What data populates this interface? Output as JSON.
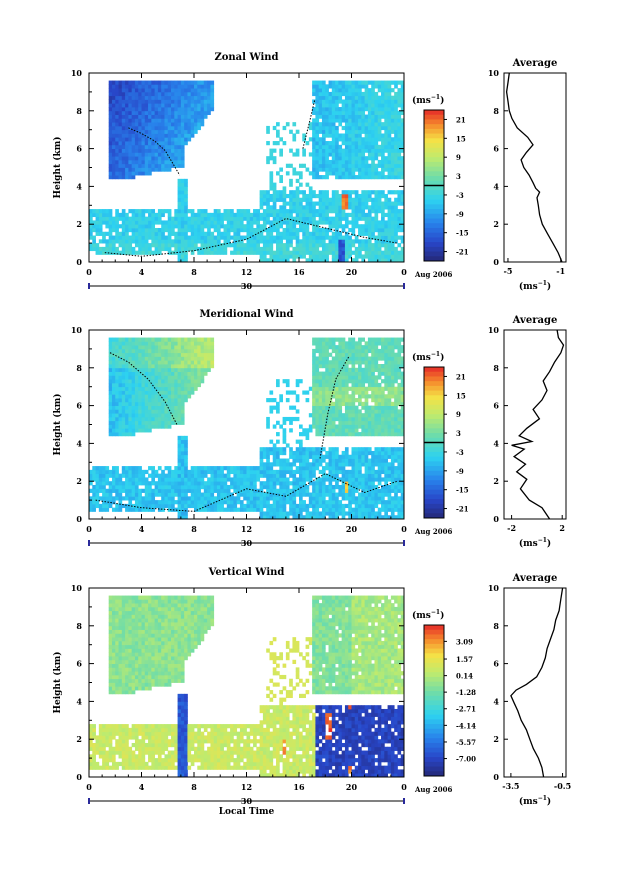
{
  "chart_data": [
    {
      "type": "heatmap",
      "title": "Zonal Wind",
      "ylabel": "Height (km)",
      "xlim": [
        0,
        24
      ],
      "ylim": [
        0,
        10
      ],
      "xticks": [
        "0",
        "4",
        "8",
        "12",
        "16",
        "20",
        "0"
      ],
      "yticks": [
        "0",
        "2",
        "4",
        "6",
        "8",
        "10"
      ],
      "date_day": "30",
      "date_label": "Aug 2006",
      "colorbar": {
        "unit": "(ms",
        "unit_exp": "−1",
        "range": [
          -24,
          24
        ],
        "ticks": [
          "21",
          "15",
          "9",
          "3",
          "-3",
          "-9",
          "-15",
          "-21"
        ]
      },
      "average": {
        "title": "Average",
        "xticks": [
          "-5",
          "-1"
        ],
        "xlim": [
          -5.3,
          -0.6
        ],
        "xlabel": "(ms",
        "xlabel_exp": "−1",
        "profile_x": [
          -0.9,
          -1.2,
          -1.6,
          -2.0,
          -2.4,
          -2.6,
          -2.7,
          -2.8,
          -2.6,
          -2.9,
          -3.1,
          -3.4,
          -3.8,
          -4.0,
          -3.6,
          -3.1,
          -3.5,
          -4.3,
          -4.7,
          -4.9,
          -5.0,
          -5.1,
          -5.0,
          -4.9
        ],
        "profile_h": [
          0.0,
          0.5,
          1.0,
          1.5,
          2.0,
          2.5,
          3.0,
          3.4,
          3.7,
          3.9,
          4.2,
          4.6,
          5.0,
          5.4,
          5.8,
          6.2,
          6.6,
          7.1,
          7.6,
          8.0,
          8.5,
          9.0,
          9.5,
          10.0
        ]
      }
    },
    {
      "type": "heatmap",
      "title": "Meridional Wind",
      "ylabel": "Height (km)",
      "xlim": [
        0,
        24
      ],
      "ylim": [
        0,
        10
      ],
      "xticks": [
        "0",
        "4",
        "8",
        "12",
        "16",
        "20",
        "0"
      ],
      "yticks": [
        "0",
        "2",
        "4",
        "6",
        "8",
        "10"
      ],
      "date_day": "30",
      "date_label": "Aug 2006",
      "colorbar": {
        "unit": "(ms",
        "unit_exp": "−1",
        "range": [
          -24,
          24
        ],
        "ticks": [
          "21",
          "15",
          "9",
          "3",
          "-3",
          "-9",
          "-15",
          "-21"
        ]
      },
      "average": {
        "title": "Average",
        "xticks": [
          "-2",
          "2"
        ],
        "xlim": [
          -2.6,
          2.3
        ],
        "xlabel": "(ms",
        "xlabel_exp": "−1",
        "profile_x": [
          1.0,
          0.4,
          -0.6,
          -1.3,
          -0.8,
          -1.6,
          -0.9,
          -1.8,
          -1.0,
          -2.0,
          -0.4,
          -1.4,
          -0.8,
          0.2,
          -0.3,
          0.4,
          0.8,
          0.5,
          1.0,
          1.4,
          1.9,
          2.1,
          1.7,
          1.6
        ],
        "profile_h": [
          0.0,
          0.6,
          1.0,
          1.6,
          2.1,
          2.5,
          2.9,
          3.3,
          3.7,
          3.9,
          4.1,
          4.4,
          4.8,
          5.3,
          5.8,
          6.3,
          6.8,
          7.3,
          7.8,
          8.3,
          8.8,
          9.2,
          9.6,
          10.0
        ]
      }
    },
    {
      "type": "heatmap",
      "title": "Vertical Wind",
      "ylabel": "Height (km)",
      "xlabel": "Local Time",
      "xlim": [
        0,
        24
      ],
      "ylim": [
        0,
        10
      ],
      "xticks": [
        "0",
        "4",
        "8",
        "12",
        "16",
        "20",
        "0"
      ],
      "yticks": [
        "0",
        "2",
        "4",
        "6",
        "8",
        "10"
      ],
      "date_day": "30",
      "date_label": "Aug 2006",
      "colorbar": {
        "unit": "(ms",
        "unit_exp": "−1",
        "range": [
          -8.5,
          4.5
        ],
        "ticks": [
          "3.09",
          "1.57",
          "0.14",
          "-1.28",
          "-2.71",
          "-4.14",
          "-5.57",
          "-7.00"
        ]
      },
      "average": {
        "title": "Average",
        "xticks": [
          "-3.5",
          "-0.5"
        ],
        "xlim": [
          -3.9,
          -0.3
        ],
        "xlabel": "(ms",
        "xlabel_exp": "−1",
        "profile_x": [
          -1.6,
          -1.7,
          -1.9,
          -2.2,
          -2.4,
          -2.6,
          -2.9,
          -3.1,
          -3.3,
          -3.5,
          -3.2,
          -2.6,
          -2.0,
          -1.7,
          -1.5,
          -1.4,
          -1.2,
          -1.0,
          -0.9,
          -0.7,
          -0.6,
          -0.5
        ],
        "profile_h": [
          0.0,
          0.5,
          1.0,
          1.5,
          2.0,
          2.5,
          3.0,
          3.5,
          3.9,
          4.3,
          4.6,
          4.9,
          5.3,
          5.8,
          6.3,
          6.8,
          7.3,
          7.8,
          8.3,
          8.8,
          9.4,
          10.0
        ]
      }
    }
  ]
}
